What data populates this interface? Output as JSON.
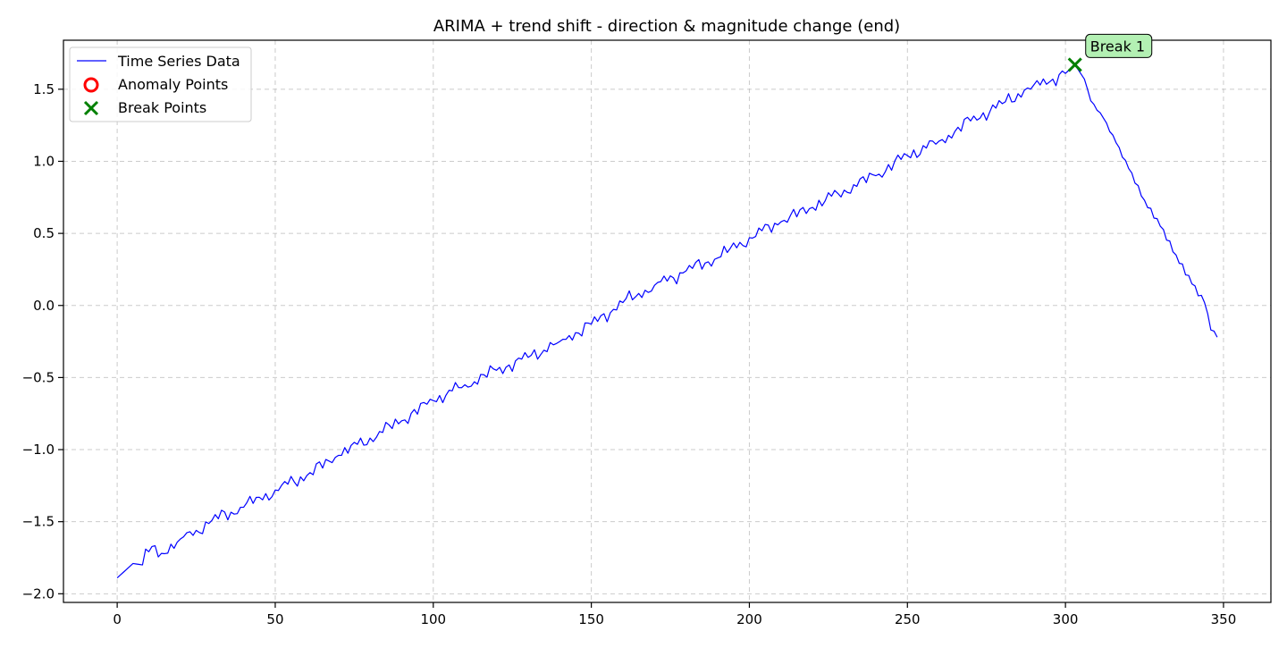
{
  "chart_data": {
    "type": "line",
    "title": "ARIMA + trend shift - direction & magnitude change (end)",
    "xlabel": "",
    "ylabel": "",
    "xlim": [
      -17,
      365
    ],
    "ylim": [
      -2.06,
      1.84
    ],
    "xticks": [
      0,
      50,
      100,
      150,
      200,
      250,
      300,
      350
    ],
    "xtick_labels": [
      "0",
      "50",
      "100",
      "150",
      "200",
      "250",
      "300",
      "350"
    ],
    "yticks": [
      -2.0,
      -1.5,
      -1.0,
      -0.5,
      0.0,
      0.5,
      1.0,
      1.5
    ],
    "ytick_labels": [
      "−2.0",
      "−1.5",
      "−1.0",
      "−0.5",
      "0.0",
      "0.5",
      "1.0",
      "1.5"
    ],
    "grid": true,
    "legend_position": "top-left",
    "legend": [
      {
        "label": "Time Series Data",
        "marker": "line",
        "color": "#0000ff"
      },
      {
        "label": "Anomaly Points",
        "marker": "circle",
        "color": "#ff0000"
      },
      {
        "label": "Break Points",
        "marker": "x",
        "color": "#008000"
      }
    ],
    "series": [
      {
        "name": "Time Series Data",
        "color": "#0000ff",
        "anchors": [
          [
            0,
            -1.89
          ],
          [
            5,
            -1.79
          ],
          [
            8,
            -1.8
          ],
          [
            9,
            -1.69
          ],
          [
            14,
            -1.72
          ],
          [
            20,
            -1.62
          ],
          [
            25,
            -1.56
          ],
          [
            30,
            -1.49
          ],
          [
            40,
            -1.4
          ],
          [
            50,
            -1.28
          ],
          [
            60,
            -1.18
          ],
          [
            70,
            -1.04
          ],
          [
            80,
            -0.92
          ],
          [
            90,
            -0.8
          ],
          [
            100,
            -0.66
          ],
          [
            110,
            -0.55
          ],
          [
            120,
            -0.45
          ],
          [
            130,
            -0.36
          ],
          [
            140,
            -0.25
          ],
          [
            150,
            -0.13
          ],
          [
            160,
            0.02
          ],
          [
            170,
            0.14
          ],
          [
            180,
            0.24
          ],
          [
            190,
            0.33
          ],
          [
            200,
            0.47
          ],
          [
            210,
            0.58
          ],
          [
            220,
            0.68
          ],
          [
            230,
            0.8
          ],
          [
            240,
            0.9
          ],
          [
            250,
            1.04
          ],
          [
            260,
            1.14
          ],
          [
            270,
            1.28
          ],
          [
            280,
            1.4
          ],
          [
            290,
            1.53
          ],
          [
            296,
            1.57
          ],
          [
            300,
            1.61
          ],
          [
            303,
            1.67
          ],
          [
            306,
            1.57
          ],
          [
            308,
            1.42
          ],
          [
            312,
            1.3
          ],
          [
            316,
            1.13
          ],
          [
            320,
            0.95
          ],
          [
            325,
            0.73
          ],
          [
            330,
            0.55
          ],
          [
            335,
            0.35
          ],
          [
            340,
            0.15
          ],
          [
            344,
            0.02
          ],
          [
            346,
            -0.17
          ],
          [
            348,
            -0.22
          ]
        ]
      }
    ],
    "anomaly_points": [],
    "break_points": [
      {
        "x": 303,
        "y": 1.67,
        "label": "Break 1"
      }
    ]
  },
  "colors": {
    "series_line": "#0000ff",
    "anomaly": "#ff0000",
    "break_marker": "#008000",
    "annotation_fill": "#b3f0b3"
  }
}
